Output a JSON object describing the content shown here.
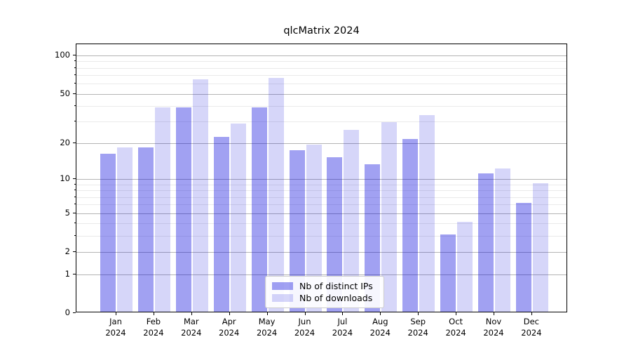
{
  "title": "qlcMatrix 2024",
  "chart_data": {
    "type": "bar",
    "title": "qlcMatrix 2024",
    "categories": [
      "Jan 2024",
      "Feb 2024",
      "Mar 2024",
      "Apr 2024",
      "May 2024",
      "Jun 2024",
      "Jul 2024",
      "Aug 2024",
      "Sep 2024",
      "Oct 2024",
      "Nov 2024",
      "Dec 2024"
    ],
    "series": [
      {
        "name": "Nb of distinct IPs",
        "color": "rgba(0,0,220,0.37)",
        "values": [
          16,
          18,
          38,
          22,
          38,
          17,
          15,
          13,
          21,
          3,
          11,
          6
        ]
      },
      {
        "name": "Nb of downloads",
        "color": "rgba(0,0,220,0.16)",
        "values": [
          18,
          38,
          63,
          28,
          65,
          19,
          25,
          29,
          33,
          4,
          12,
          9
        ]
      }
    ],
    "xlabel": "",
    "ylabel": "",
    "yscale": "log1p",
    "ylim": [
      0,
      130
    ],
    "yticks": [
      0,
      1,
      2,
      5,
      10,
      20,
      50,
      100
    ],
    "minor_gridlines": [
      3,
      4,
      6,
      7,
      8,
      9,
      30,
      40,
      60,
      70,
      80,
      90
    ],
    "grid": true,
    "legend_position": "lower center"
  },
  "colors": {
    "background": "#ffffff",
    "spine": "#000000",
    "major_grid": "#b4b4b4",
    "minor_grid": "#eaeaea",
    "legend_border": "#cccccc",
    "text": "#000000"
  }
}
